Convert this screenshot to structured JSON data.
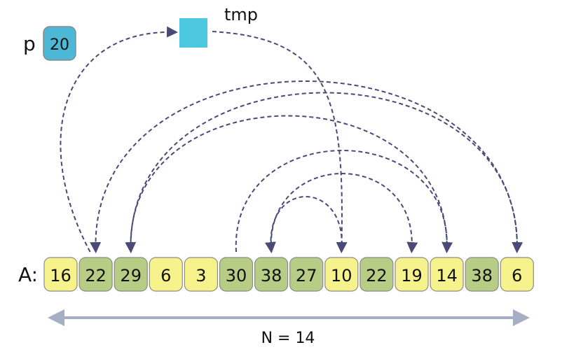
{
  "pivot": {
    "label": "p",
    "value": "20",
    "color": "#4cb8d6"
  },
  "tmp": {
    "label": "tmp",
    "color": "#4cc8e0"
  },
  "array": {
    "label": "A:",
    "cells": [
      {
        "value": "16",
        "shade": "light"
      },
      {
        "value": "22",
        "shade": "green"
      },
      {
        "value": "29",
        "shade": "green"
      },
      {
        "value": "6",
        "shade": "light"
      },
      {
        "value": "3",
        "shade": "light"
      },
      {
        "value": "30",
        "shade": "green"
      },
      {
        "value": "38",
        "shade": "green"
      },
      {
        "value": "27",
        "shade": "green"
      },
      {
        "value": "10",
        "shade": "light"
      },
      {
        "value": "22",
        "shade": "green"
      },
      {
        "value": "19",
        "shade": "light"
      },
      {
        "value": "14",
        "shade": "light"
      },
      {
        "value": "38",
        "shade": "green"
      },
      {
        "value": "6",
        "shade": "light"
      }
    ],
    "colors": {
      "light": "#f7f38c",
      "green": "#b7cc84",
      "border": "#8a8a8a"
    }
  },
  "length_label": "N = 14",
  "arrow_color": "#4a4a78",
  "span_arrow_color": "#a6aec3",
  "swaps": [
    {
      "from": 1,
      "to": "tmp"
    },
    {
      "from": "tmp",
      "to": 8
    },
    {
      "from": 8,
      "to": 6
    },
    {
      "from": 6,
      "to": 10
    },
    {
      "from": 5,
      "to": 11
    },
    {
      "from": 11,
      "to": 2
    },
    {
      "from": 2,
      "to": 13
    },
    {
      "from": 13,
      "to": 1
    }
  ]
}
